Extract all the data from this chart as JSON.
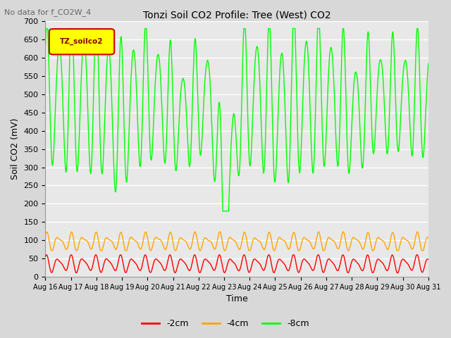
{
  "title": "Tonzi Soil CO2 Profile: Tree (West) CO2",
  "subtitle": "No data for f_CO2W_4",
  "ylabel": "Soil CO2 (mV)",
  "xlabel": "Time",
  "legend_label": "TZ_soilco2",
  "series_labels": [
    "-2cm",
    "-4cm",
    "-8cm"
  ],
  "series_colors": [
    "#ff0000",
    "#ffa500",
    "#00ff00"
  ],
  "ylim": [
    0,
    700
  ],
  "yticks": [
    0,
    50,
    100,
    150,
    200,
    250,
    300,
    350,
    400,
    450,
    500,
    550,
    600,
    650,
    700
  ],
  "xtick_labels": [
    "Aug 16",
    "Aug 17",
    "Aug 18",
    "Aug 19",
    "Aug 20",
    "Aug 21",
    "Aug 22",
    "Aug 23",
    "Aug 24",
    "Aug 25",
    "Aug 26",
    "Aug 27",
    "Aug 28",
    "Aug 29",
    "Aug 30",
    "Aug 31"
  ],
  "bg_color": "#d8d8d8",
  "plot_bg_color": "#e8e8e8",
  "linewidth": 1.0,
  "n_points": 5000,
  "days": 15.5
}
